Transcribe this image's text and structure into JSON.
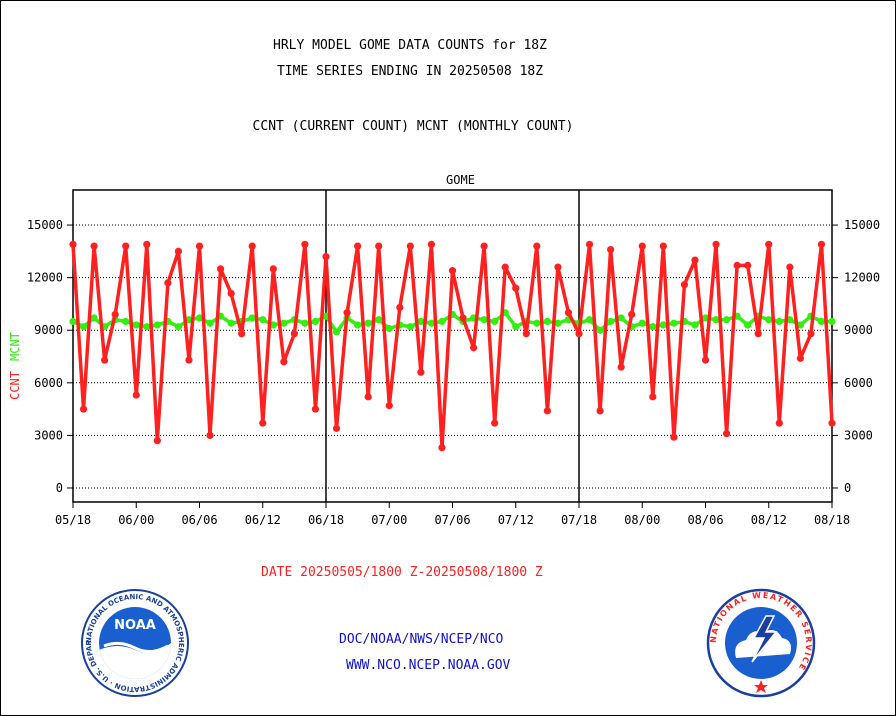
{
  "header": {
    "title_line1": "HRLY MODEL GOME DATA COUNTS for 18Z",
    "title_line2": "TIME SERIES ENDING IN 20250508 18Z",
    "title_line3": "CCNT (CURRENT COUNT) MCNT (MONTHLY COUNT)"
  },
  "footer": {
    "date_range": "DATE 20250505/1800 Z-20250508/1800 Z",
    "org": "DOC/NOAA/NWS/NCEP/NCO",
    "url": "WWW.NCO.NCEP.NOAA.GOV"
  },
  "logos": {
    "noaa_text": "NOAA",
    "noaa_ring": "NATIONAL OCEANIC AND ATMOSPHERIC ADMINISTRATION · U.S. DEPARTMENT OF COMMERCE",
    "nws_ring": "NATIONAL WEATHER SERVICE"
  },
  "colors": {
    "ccnt": "#ff2020",
    "mcnt": "#33ee11",
    "axis": "#000000",
    "label_blue": "#1010d0"
  },
  "chart_data": {
    "type": "line",
    "title": "GOME",
    "ylabel_left": [
      "CCNT",
      "MCNT"
    ],
    "ylim": [
      -800,
      17000
    ],
    "yticks": [
      0,
      3000,
      6000,
      9000,
      12000,
      15000
    ],
    "ytick_labels": [
      "0",
      "3000",
      "6000",
      "9000",
      "12000",
      "15000"
    ],
    "xtick_labels": [
      "05/18",
      "06/00",
      "06/06",
      "06/12",
      "06/18",
      "07/00",
      "07/06",
      "07/12",
      "07/18",
      "08/00",
      "08/06",
      "08/12",
      "08/18"
    ],
    "day_separators": [
      "06/18",
      "07/18"
    ],
    "grid": true,
    "x_unit": "hour index (0 = 05/18, 72 = 08/18)",
    "series": [
      {
        "name": "CCNT",
        "values": [
          13900,
          4500,
          13800,
          7300,
          9900,
          13800,
          5300,
          13900,
          2700,
          11700,
          13500,
          7300,
          13800,
          3000,
          12500,
          11100,
          8800,
          13800,
          3700,
          12500,
          7200,
          8800,
          13900,
          4500,
          13200,
          3400,
          10000,
          13800,
          5200,
          13800,
          4700,
          10300,
          13800,
          6600,
          13900,
          2300,
          12400,
          9700,
          8000,
          13800,
          3700,
          12600,
          11400,
          8800,
          13800,
          4400,
          12600,
          10000,
          8800,
          13900,
          4400,
          13600,
          6900,
          9900,
          13800,
          5200,
          13800,
          2900,
          11600,
          13000,
          7300,
          13900,
          3100,
          12700,
          12700,
          8800,
          13900,
          3700,
          12600,
          7400,
          8800,
          13900,
          3700
        ]
      },
      {
        "name": "MCNT",
        "values": [
          9500,
          9200,
          9700,
          9200,
          9600,
          9500,
          9300,
          9200,
          9300,
          9500,
          9200,
          9600,
          9700,
          9400,
          9800,
          9400,
          9500,
          9700,
          9600,
          9300,
          9400,
          9600,
          9400,
          9500,
          9800,
          8900,
          9700,
          9300,
          9400,
          9600,
          9100,
          9300,
          9200,
          9500,
          9400,
          9500,
          9900,
          9500,
          9700,
          9600,
          9500,
          10000,
          9200,
          9500,
          9400,
          9500,
          9400,
          9600,
          9400,
          9600,
          9000,
          9500,
          9700,
          9200,
          9400,
          9200,
          9300,
          9400,
          9500,
          9300,
          9700,
          9600,
          9600,
          9800,
          9300,
          9800,
          9600,
          9500,
          9600,
          9300,
          9800,
          9500,
          9500
        ]
      }
    ]
  }
}
